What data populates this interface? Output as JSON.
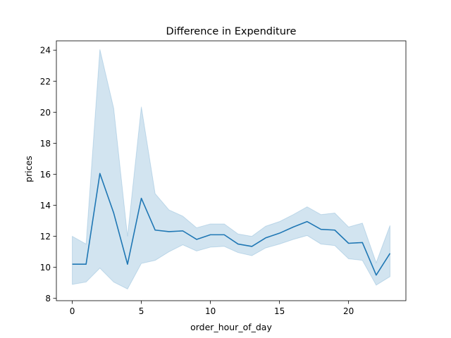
{
  "chart_data": {
    "type": "line",
    "title": "Difference in Expenditure",
    "xlabel": "order_hour_of_day",
    "ylabel": "prices",
    "xlim": [
      -1.15,
      24.15
    ],
    "ylim": [
      7.85,
      24.6
    ],
    "xticks": [
      0,
      5,
      10,
      15,
      20
    ],
    "yticks": [
      8,
      10,
      12,
      14,
      16,
      18,
      20,
      22,
      24
    ],
    "grid": false,
    "series": [
      {
        "color": "#1f77b4",
        "band_color": "#1f77b4",
        "x": [
          0,
          1,
          2,
          3,
          4,
          5,
          6,
          7,
          8,
          9,
          10,
          11,
          12,
          13,
          14,
          15,
          16,
          17,
          18,
          19,
          20,
          21,
          22,
          23
        ],
        "y": [
          10.2,
          10.2,
          16.05,
          13.5,
          10.2,
          14.45,
          12.4,
          12.3,
          12.35,
          11.8,
          12.1,
          12.1,
          11.5,
          11.35,
          11.9,
          12.2,
          12.6,
          12.95,
          12.45,
          12.4,
          11.55,
          11.6,
          9.5,
          10.9
        ],
        "ci_low": [
          8.9,
          9.05,
          9.95,
          9.05,
          8.6,
          10.25,
          10.45,
          11.0,
          11.45,
          11.05,
          11.3,
          11.35,
          10.95,
          10.75,
          11.25,
          11.5,
          11.8,
          12.05,
          11.5,
          11.4,
          10.55,
          10.45,
          8.85,
          9.4
        ],
        "ci_high": [
          12.0,
          11.5,
          24.05,
          20.25,
          12.0,
          20.35,
          14.75,
          13.7,
          13.3,
          12.55,
          12.8,
          12.8,
          12.15,
          12.0,
          12.65,
          12.95,
          13.4,
          13.9,
          13.4,
          13.5,
          12.6,
          12.85,
          10.3,
          12.7
        ]
      }
    ]
  }
}
